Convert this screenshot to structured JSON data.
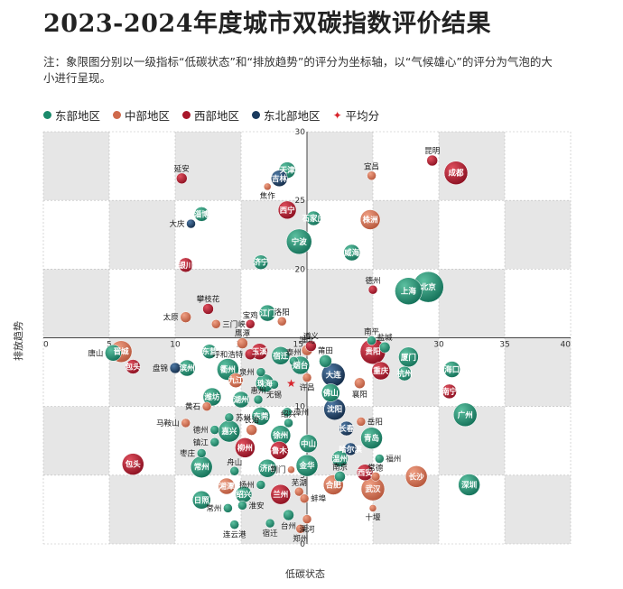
{
  "title": "2023-2024年度城市双碳指数评价结果",
  "note": "注：象限图分别以一级指标“低碳状态”和“排放趋势”的评分为坐标轴，以“气候雄心”的评分为气泡的大小进行呈现。",
  "legend": [
    {
      "label": "东部地区",
      "color": "#1b8a6b",
      "kind": "dot"
    },
    {
      "label": "中部地区",
      "color": "#cf6a4c",
      "kind": "dot"
    },
    {
      "label": "西部地区",
      "color": "#a8172a",
      "kind": "dot"
    },
    {
      "label": "东北部地区",
      "color": "#1a3a5e",
      "kind": "dot"
    },
    {
      "label": "平均分",
      "color": "#d8242c",
      "kind": "star"
    }
  ],
  "colors": {
    "east": "#1b8a6b",
    "central": "#cf6a4c",
    "west": "#a8172a",
    "northeast": "#1a3a5e",
    "avg": "#d8242c"
  },
  "chart_data": {
    "type": "scatter",
    "xlabel": "低碳状态",
    "ylabel": "排放趋势",
    "xlim": [
      0,
      40
    ],
    "ylim": [
      0,
      30
    ],
    "xticks": [
      0,
      5,
      10,
      15,
      20,
      25,
      30,
      35,
      40
    ],
    "yticks": [
      0,
      5,
      10,
      15,
      20,
      25,
      30
    ],
    "grid": true,
    "legend_position": "top-left",
    "average": {
      "x": 18.8,
      "y": 11.7
    },
    "points": [
      {
        "name": "天津",
        "region": "east",
        "x": 18.5,
        "y": 27.2,
        "r": 9,
        "label": "in"
      },
      {
        "name": "吉林",
        "region": "northeast",
        "x": 17.9,
        "y": 26.6,
        "r": 9,
        "label": "in"
      },
      {
        "name": "延安",
        "region": "west",
        "x": 10.5,
        "y": 26.6,
        "r": 6,
        "label": "in"
      },
      {
        "name": "焦作",
        "region": "central",
        "x": 17.0,
        "y": 26.0,
        "r": 4,
        "label": "below"
      },
      {
        "name": "宜昌",
        "region": "central",
        "x": 24.9,
        "y": 26.8,
        "r": 5,
        "label": "above"
      },
      {
        "name": "昆明",
        "region": "west",
        "x": 29.5,
        "y": 27.9,
        "r": 6,
        "label": "in"
      },
      {
        "name": "成都",
        "region": "west",
        "x": 31.3,
        "y": 27.0,
        "r": 13,
        "label": "in"
      },
      {
        "name": "淄博",
        "region": "east",
        "x": 12.0,
        "y": 24.0,
        "r": 8,
        "label": "in"
      },
      {
        "name": "大庆",
        "region": "northeast",
        "x": 11.2,
        "y": 23.3,
        "r": 5,
        "label": "left"
      },
      {
        "name": "西宁",
        "region": "west",
        "x": 18.5,
        "y": 24.3,
        "r": 10,
        "label": "in"
      },
      {
        "name": "石家庄",
        "region": "east",
        "x": 20.5,
        "y": 23.7,
        "r": 8,
        "label": "in"
      },
      {
        "name": "株洲",
        "region": "central",
        "x": 24.8,
        "y": 23.6,
        "r": 11,
        "label": "in"
      },
      {
        "name": "宁波",
        "region": "east",
        "x": 19.4,
        "y": 22.0,
        "r": 14,
        "label": "in"
      },
      {
        "name": "威海",
        "region": "east",
        "x": 23.4,
        "y": 21.2,
        "r": 9,
        "label": "in"
      },
      {
        "name": "银川",
        "region": "west",
        "x": 10.8,
        "y": 20.3,
        "r": 8,
        "label": "in"
      },
      {
        "name": "济宁",
        "region": "east",
        "x": 16.5,
        "y": 20.5,
        "r": 8,
        "label": "in"
      },
      {
        "name": "德州",
        "region": "west",
        "x": 25.0,
        "y": 18.5,
        "r": 5,
        "label": "above"
      },
      {
        "name": "上海",
        "region": "east",
        "x": 27.7,
        "y": 18.4,
        "r": 15,
        "label": "in"
      },
      {
        "name": "北京",
        "region": "east",
        "x": 29.2,
        "y": 18.7,
        "r": 17,
        "label": "in"
      },
      {
        "name": "攀枝花",
        "region": "west",
        "x": 12.5,
        "y": 17.1,
        "r": 6,
        "label": "above"
      },
      {
        "name": "太原",
        "region": "central",
        "x": 10.8,
        "y": 16.5,
        "r": 6,
        "label": "left"
      },
      {
        "name": "宝鸡",
        "region": "west",
        "x": 15.7,
        "y": 16.0,
        "r": 5,
        "label": "above"
      },
      {
        "name": "江门",
        "region": "east",
        "x": 17.0,
        "y": 16.8,
        "r": 9,
        "label": "in"
      },
      {
        "name": "三门峡",
        "region": "central",
        "x": 13.1,
        "y": 16.0,
        "r": 5,
        "label": "right"
      },
      {
        "name": "洛阳",
        "region": "central",
        "x": 18.1,
        "y": 16.2,
        "r": 5,
        "label": "above"
      },
      {
        "name": "鹰潭",
        "region": "central",
        "x": 15.1,
        "y": 14.6,
        "r": 6,
        "label": "above"
      },
      {
        "name": "南平",
        "region": "east",
        "x": 24.9,
        "y": 14.8,
        "r": 5,
        "label": "above"
      },
      {
        "name": "盐城",
        "region": "east",
        "x": 25.9,
        "y": 14.3,
        "r": 6,
        "label": "above"
      },
      {
        "name": "呼和浩特",
        "region": "west",
        "x": 15.7,
        "y": 13.8,
        "r": 6,
        "label": "left"
      },
      {
        "name": "宿迁",
        "region": "east",
        "x": 18.0,
        "y": 13.7,
        "r": 10,
        "label": "in"
      },
      {
        "name": "晋城",
        "region": "central",
        "x": 5.9,
        "y": 14.0,
        "r": 12,
        "label": "in"
      },
      {
        "name": "唐山",
        "region": "east",
        "x": 5.3,
        "y": 13.9,
        "r": 9,
        "label": "left"
      },
      {
        "name": "包头",
        "region": "west",
        "x": 6.8,
        "y": 12.9,
        "r": 8,
        "label": "in"
      },
      {
        "name": "东营",
        "region": "east",
        "x": 12.6,
        "y": 14.0,
        "r": 8,
        "label": "in"
      },
      {
        "name": "玉溪",
        "region": "west",
        "x": 16.4,
        "y": 14.0,
        "r": 9,
        "label": "in"
      },
      {
        "name": "淮北",
        "region": "central",
        "x": 20.0,
        "y": 14.1,
        "r": 6,
        "label": "above"
      },
      {
        "name": "遵义",
        "region": "west",
        "x": 20.3,
        "y": 14.4,
        "r": 6,
        "label": "above"
      },
      {
        "name": "泰州",
        "region": "east",
        "x": 19.0,
        "y": 13.3,
        "r": 5,
        "label": "in"
      },
      {
        "name": "烟台",
        "region": "east",
        "x": 19.5,
        "y": 13.0,
        "r": 10,
        "label": "in"
      },
      {
        "name": "莆田",
        "region": "east",
        "x": 21.4,
        "y": 13.3,
        "r": 7,
        "label": "above"
      },
      {
        "name": "贵阳",
        "region": "west",
        "x": 25.0,
        "y": 14.0,
        "r": 14,
        "label": "in"
      },
      {
        "name": "厦门",
        "region": "east",
        "x": 27.7,
        "y": 13.6,
        "r": 11,
        "label": "in"
      },
      {
        "name": "滨州",
        "region": "east",
        "x": 10.9,
        "y": 12.8,
        "r": 9,
        "label": "in"
      },
      {
        "name": "重庆",
        "region": "west",
        "x": 25.6,
        "y": 12.6,
        "r": 10,
        "label": "in"
      },
      {
        "name": "杭州",
        "region": "east",
        "x": 27.4,
        "y": 12.4,
        "r": 8,
        "label": "in"
      },
      {
        "name": "海口",
        "region": "east",
        "x": 31.0,
        "y": 12.7,
        "r": 9,
        "label": "in"
      },
      {
        "name": "大连",
        "region": "northeast",
        "x": 22.0,
        "y": 12.3,
        "r": 13,
        "label": "in"
      },
      {
        "name": "盘锦",
        "region": "northeast",
        "x": 10.0,
        "y": 12.8,
        "r": 6,
        "label": "left"
      },
      {
        "name": "衢州",
        "region": "east",
        "x": 14.0,
        "y": 12.7,
        "r": 12,
        "label": "in"
      },
      {
        "name": "泉州",
        "region": "east",
        "x": 16.5,
        "y": 12.5,
        "r": 5,
        "label": "left"
      },
      {
        "name": "九江",
        "region": "central",
        "x": 14.6,
        "y": 11.9,
        "r": 8,
        "label": "in"
      },
      {
        "name": "珠海",
        "region": "east",
        "x": 16.8,
        "y": 11.7,
        "r": 10,
        "label": "in"
      },
      {
        "name": "许昌",
        "region": "central",
        "x": 20.0,
        "y": 12.1,
        "r": 5,
        "label": "below"
      },
      {
        "name": "襄阳",
        "region": "central",
        "x": 24.0,
        "y": 11.7,
        "r": 6,
        "label": "below"
      },
      {
        "name": "南宁",
        "region": "west",
        "x": 30.8,
        "y": 11.1,
        "r": 8,
        "label": "in"
      },
      {
        "name": "无锡",
        "region": "east",
        "x": 17.5,
        "y": 11.6,
        "r": 5,
        "label": "below"
      },
      {
        "name": "佛山",
        "region": "east",
        "x": 21.8,
        "y": 11.0,
        "r": 10,
        "label": "in"
      },
      {
        "name": "潍坊",
        "region": "east",
        "x": 12.8,
        "y": 10.7,
        "r": 10,
        "label": "in"
      },
      {
        "name": "湖州",
        "region": "east",
        "x": 15.0,
        "y": 10.5,
        "r": 9,
        "label": "in"
      },
      {
        "name": "惠州",
        "region": "east",
        "x": 16.3,
        "y": 10.5,
        "r": 5,
        "label": "in"
      },
      {
        "name": "黄石",
        "region": "central",
        "x": 12.4,
        "y": 10.0,
        "r": 5,
        "label": "left"
      },
      {
        "name": "沈阳",
        "region": "northeast",
        "x": 22.1,
        "y": 9.8,
        "r": 12,
        "label": "in"
      },
      {
        "name": "漳州",
        "region": "east",
        "x": 18.5,
        "y": 9.6,
        "r": 5,
        "label": "right"
      },
      {
        "name": "广州",
        "region": "east",
        "x": 32.0,
        "y": 9.4,
        "r": 13,
        "label": "in"
      },
      {
        "name": "苏州",
        "region": "east",
        "x": 14.1,
        "y": 9.2,
        "r": 5,
        "label": "right"
      },
      {
        "name": "东莞",
        "region": "east",
        "x": 16.5,
        "y": 9.3,
        "r": 10,
        "label": "in"
      },
      {
        "name": "绍兴",
        "region": "east",
        "x": 18.6,
        "y": 8.8,
        "r": 5,
        "label": "above"
      },
      {
        "name": "马鞍山",
        "region": "central",
        "x": 10.8,
        "y": 8.8,
        "r": 5,
        "label": "left"
      },
      {
        "name": "岳阳",
        "region": "central",
        "x": 24.1,
        "y": 8.9,
        "r": 5,
        "label": "right"
      },
      {
        "name": "德州",
        "region": "east",
        "x": 13.0,
        "y": 8.3,
        "r": 5,
        "label": "left"
      },
      {
        "name": "嘉兴",
        "region": "east",
        "x": 14.1,
        "y": 8.2,
        "r": 12,
        "label": "in"
      },
      {
        "name": "长治",
        "region": "central",
        "x": 15.8,
        "y": 8.3,
        "r": 6,
        "label": "in"
      },
      {
        "name": "徐州",
        "region": "east",
        "x": 18.0,
        "y": 7.9,
        "r": 11,
        "label": "in"
      },
      {
        "name": "长春",
        "region": "northeast",
        "x": 23.0,
        "y": 8.4,
        "r": 8,
        "label": "in"
      },
      {
        "name": "青岛",
        "region": "east",
        "x": 24.9,
        "y": 7.7,
        "r": 12,
        "label": "in"
      },
      {
        "name": "镇江",
        "region": "east",
        "x": 13.0,
        "y": 7.4,
        "r": 5,
        "label": "left"
      },
      {
        "name": "柳州",
        "region": "west",
        "x": 15.3,
        "y": 7.0,
        "r": 11,
        "label": "in"
      },
      {
        "name": "中山",
        "region": "east",
        "x": 20.1,
        "y": 7.3,
        "r": 10,
        "label": "in"
      },
      {
        "name": "乌鲁木齐",
        "region": "west",
        "x": 17.9,
        "y": 6.8,
        "r": 10,
        "label": "in"
      },
      {
        "name": "哈尔滨",
        "region": "northeast",
        "x": 23.3,
        "y": 6.9,
        "r": 7,
        "label": "in"
      },
      {
        "name": "枣庄",
        "region": "east",
        "x": 12.0,
        "y": 6.6,
        "r": 5,
        "label": "left"
      },
      {
        "name": "福州",
        "region": "east",
        "x": 25.5,
        "y": 6.2,
        "r": 5,
        "label": "right"
      },
      {
        "name": "温州",
        "region": "east",
        "x": 22.5,
        "y": 6.2,
        "r": 9,
        "label": "in"
      },
      {
        "name": "包头",
        "region": "west",
        "x": 6.8,
        "y": 5.8,
        "r": 12,
        "label": "in"
      },
      {
        "name": "常州",
        "region": "east",
        "x": 12.0,
        "y": 5.6,
        "r": 12,
        "label": "in"
      },
      {
        "name": "济南",
        "region": "east",
        "x": 17.0,
        "y": 5.5,
        "r": 10,
        "label": "in"
      },
      {
        "name": "舟山",
        "region": "east",
        "x": 14.5,
        "y": 5.3,
        "r": 5,
        "label": "in"
      },
      {
        "name": "荆门",
        "region": "central",
        "x": 18.8,
        "y": 5.4,
        "r": 4,
        "label": "left"
      },
      {
        "name": "金华",
        "region": "east",
        "x": 20.0,
        "y": 5.7,
        "r": 12,
        "label": "in"
      },
      {
        "name": "西安",
        "region": "west",
        "x": 24.4,
        "y": 5.2,
        "r": 9,
        "label": "in"
      },
      {
        "name": "南京",
        "region": "east",
        "x": 22.5,
        "y": 4.9,
        "r": 6,
        "label": "in"
      },
      {
        "name": "常德",
        "region": "central",
        "x": 25.2,
        "y": 4.9,
        "r": 5,
        "label": "above"
      },
      {
        "name": "长沙",
        "region": "central",
        "x": 28.3,
        "y": 4.9,
        "r": 12,
        "label": "in"
      },
      {
        "name": "合肥",
        "region": "central",
        "x": 22.0,
        "y": 4.3,
        "r": 11,
        "label": "in"
      },
      {
        "name": "深圳",
        "region": "east",
        "x": 32.3,
        "y": 4.3,
        "r": 12,
        "label": "in"
      },
      {
        "name": "武汉",
        "region": "central",
        "x": 25.0,
        "y": 4.0,
        "r": 13,
        "label": "in"
      },
      {
        "name": "扬州",
        "region": "east",
        "x": 16.5,
        "y": 4.3,
        "r": 5,
        "label": "left"
      },
      {
        "name": "湘潭",
        "region": "central",
        "x": 13.9,
        "y": 4.2,
        "r": 9,
        "label": "in"
      },
      {
        "name": "绍兴",
        "region": "east",
        "x": 15.2,
        "y": 3.6,
        "r": 9,
        "label": "in"
      },
      {
        "name": "兰州",
        "region": "west",
        "x": 18.0,
        "y": 3.6,
        "r": 11,
        "label": "in"
      },
      {
        "name": "芜湖",
        "region": "central",
        "x": 19.4,
        "y": 3.8,
        "r": 5,
        "label": "in"
      },
      {
        "name": "日照",
        "region": "east",
        "x": 12.0,
        "y": 3.2,
        "r": 10,
        "label": "in"
      },
      {
        "name": "蚌埠",
        "region": "central",
        "x": 19.8,
        "y": 3.3,
        "r": 5,
        "label": "right"
      },
      {
        "name": "淮安",
        "region": "east",
        "x": 15.1,
        "y": 2.8,
        "r": 5,
        "label": "right"
      },
      {
        "name": "常州",
        "region": "east",
        "x": 14.0,
        "y": 2.6,
        "r": 5,
        "label": "left"
      },
      {
        "name": "十堰",
        "region": "central",
        "x": 25.0,
        "y": 2.6,
        "r": 4,
        "label": "below"
      },
      {
        "name": "连云港",
        "region": "east",
        "x": 14.5,
        "y": 1.4,
        "r": 5,
        "label": "below"
      },
      {
        "name": "宿迁",
        "region": "east",
        "x": 17.2,
        "y": 1.5,
        "r": 5,
        "label": "below"
      },
      {
        "name": "台州",
        "region": "east",
        "x": 18.6,
        "y": 2.1,
        "r": 6,
        "label": "below"
      },
      {
        "name": "溧河",
        "region": "central",
        "x": 20.0,
        "y": 1.8,
        "r": 5,
        "label": "below"
      },
      {
        "name": "郑州",
        "region": "central",
        "x": 19.5,
        "y": 1.1,
        "r": 5,
        "label": "below"
      }
    ]
  }
}
